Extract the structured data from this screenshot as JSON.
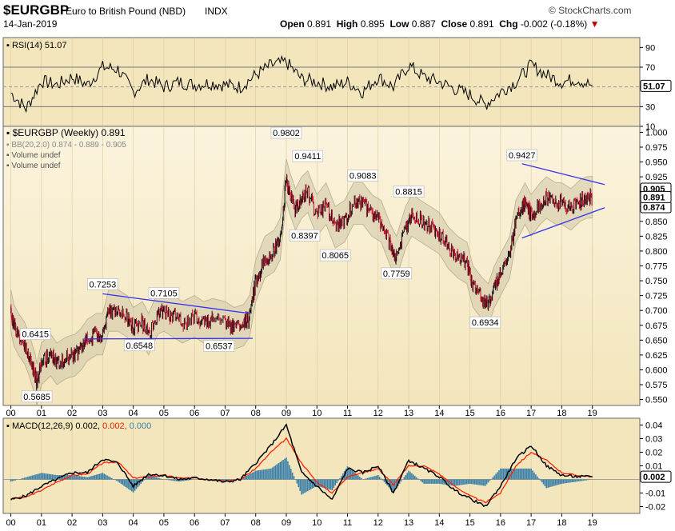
{
  "header": {
    "symbol": "$EURGBP",
    "name": "Euro to British Pound (NBD)",
    "exchange": "INDX",
    "date": "14-Jan-2019",
    "brand": "© StockCharts.com",
    "open_label": "Open",
    "open": "0.891",
    "high_label": "High",
    "high": "0.895",
    "low_label": "Low",
    "low": "0.887",
    "close_label": "Close",
    "close": "0.891",
    "chg_label": "Chg",
    "chg": "-0.002 (-0.18%)"
  },
  "colors": {
    "panel_bg": "#f3e6bd",
    "price_bar": "#111111",
    "price_down": "#c8102e",
    "bb_band": "#cfc6a8",
    "trendline": "#3333ee",
    "macd_line": "#000000",
    "signal_line": "#ff2200",
    "histogram": "#3a7fa8"
  },
  "chart_data": [
    {
      "type": "line",
      "panel": "RSI",
      "label": "RSI(14)",
      "last_value": "51.07",
      "ylim": [
        10,
        100
      ],
      "yticks": [
        "90",
        "70",
        "50",
        "30",
        "10"
      ],
      "reference_lines": [
        70,
        30
      ],
      "x_years": [
        2000.0,
        2000.5,
        2001.0,
        2001.5,
        2002.0,
        2002.5,
        2003.0,
        2003.5,
        2004.0,
        2004.5,
        2005.0,
        2005.5,
        2006.0,
        2006.5,
        2007.0,
        2007.5,
        2008.0,
        2008.5,
        2009.0,
        2009.5,
        2010.0,
        2010.5,
        2011.0,
        2011.5,
        2012.0,
        2012.5,
        2013.0,
        2013.5,
        2014.0,
        2014.5,
        2015.0,
        2015.5,
        2016.0,
        2016.5,
        2017.0,
        2017.5,
        2018.0,
        2018.5,
        2019.0
      ],
      "values": [
        44,
        28,
        56,
        52,
        60,
        52,
        70,
        68,
        45,
        58,
        50,
        55,
        52,
        54,
        52,
        50,
        62,
        72,
        75,
        58,
        55,
        50,
        55,
        45,
        60,
        50,
        72,
        60,
        55,
        48,
        42,
        32,
        45,
        55,
        72,
        62,
        55,
        58,
        51
      ]
    },
    {
      "type": "line",
      "panel": "Price",
      "title": "$EURGBP (Weekly) 0.891",
      "legend": [
        "BB(20,2.0) 0.874 - 0.889 - 0.905",
        "Volume undef",
        "Volume undef"
      ],
      "last_value": "0.891",
      "band_values": [
        "0.905",
        "0.874"
      ],
      "ylim": [
        0.55,
        1.0
      ],
      "yticks": [
        "1.000",
        "0.975",
        "0.950",
        "0.925",
        "0.900",
        "0.875",
        "0.850",
        "0.825",
        "0.800",
        "0.775",
        "0.750",
        "0.725",
        "0.700",
        "0.675",
        "0.650",
        "0.625",
        "0.600",
        "0.575",
        "0.550"
      ],
      "x_years": [
        2000.0,
        2000.1,
        2000.25,
        2000.45,
        2000.6,
        2000.8,
        2000.85,
        2001.0,
        2001.3,
        2001.5,
        2001.8,
        2002.1,
        2002.3,
        2002.5,
        2002.8,
        2003.0,
        2003.2,
        2003.5,
        2003.8,
        2004.0,
        2004.3,
        2004.5,
        2004.8,
        2005.0,
        2005.3,
        2005.6,
        2006.0,
        2006.3,
        2006.6,
        2007.0,
        2007.3,
        2007.6,
        2007.8,
        2008.0,
        2008.3,
        2008.6,
        2008.8,
        2009.0,
        2009.1,
        2009.3,
        2009.5,
        2009.7,
        2010.0,
        2010.3,
        2010.6,
        2010.9,
        2011.2,
        2011.5,
        2011.8,
        2012.1,
        2012.4,
        2012.6,
        2012.9,
        2013.1,
        2013.4,
        2013.7,
        2014.0,
        2014.3,
        2014.6,
        2014.9,
        2015.1,
        2015.4,
        2015.6,
        2015.8,
        2016.0,
        2016.3,
        2016.5,
        2016.7,
        2016.8,
        2017.0,
        2017.3,
        2017.5,
        2017.8,
        2018.0,
        2018.3,
        2018.6,
        2018.8,
        2019.0
      ],
      "values": [
        0.7,
        0.675,
        0.66,
        0.645,
        0.625,
        0.59,
        0.575,
        0.61,
        0.625,
        0.61,
        0.62,
        0.625,
        0.635,
        0.65,
        0.66,
        0.66,
        0.7,
        0.7,
        0.69,
        0.67,
        0.68,
        0.66,
        0.695,
        0.7,
        0.69,
        0.68,
        0.69,
        0.68,
        0.685,
        0.68,
        0.67,
        0.675,
        0.69,
        0.75,
        0.79,
        0.8,
        0.82,
        0.92,
        0.9,
        0.87,
        0.89,
        0.9,
        0.86,
        0.88,
        0.84,
        0.85,
        0.88,
        0.88,
        0.86,
        0.85,
        0.81,
        0.79,
        0.84,
        0.86,
        0.85,
        0.84,
        0.83,
        0.805,
        0.79,
        0.78,
        0.74,
        0.72,
        0.71,
        0.74,
        0.76,
        0.79,
        0.85,
        0.87,
        0.88,
        0.86,
        0.88,
        0.89,
        0.88,
        0.88,
        0.87,
        0.885,
        0.89,
        0.891
      ],
      "annotations": [
        {
          "x": 2000.8,
          "y": 0.6415,
          "text": "0.6415"
        },
        {
          "x": 2000.85,
          "y": 0.5685,
          "text": "0.5685"
        },
        {
          "x": 2003.0,
          "y": 0.7253,
          "text": "0.7253"
        },
        {
          "x": 2005.0,
          "y": 0.7105,
          "text": "0.7105"
        },
        {
          "x": 2004.2,
          "y": 0.6548,
          "text": "0.6548"
        },
        {
          "x": 2006.8,
          "y": 0.6537,
          "text": "0.6537"
        },
        {
          "x": 2009.0,
          "y": 0.9802,
          "text": "0.9802"
        },
        {
          "x": 2009.7,
          "y": 0.9411,
          "text": "0.9411"
        },
        {
          "x": 2009.6,
          "y": 0.8397,
          "text": "0.8397"
        },
        {
          "x": 2010.6,
          "y": 0.8065,
          "text": "0.8065"
        },
        {
          "x": 2011.5,
          "y": 0.9083,
          "text": "0.9083"
        },
        {
          "x": 2012.6,
          "y": 0.7759,
          "text": "0.7759"
        },
        {
          "x": 2013.0,
          "y": 0.8815,
          "text": "0.8815"
        },
        {
          "x": 2015.5,
          "y": 0.6934,
          "text": "0.6934"
        },
        {
          "x": 2016.7,
          "y": 0.9427,
          "text": "0.9427"
        }
      ],
      "trendlines": [
        {
          "x1": 2003.0,
          "y1": 0.728,
          "x2": 2007.8,
          "y2": 0.695
        },
        {
          "x1": 2002.4,
          "y1": 0.652,
          "x2": 2007.9,
          "y2": 0.653
        },
        {
          "x1": 2016.7,
          "y1": 0.947,
          "x2": 2019.4,
          "y2": 0.912
        },
        {
          "x1": 2016.7,
          "y1": 0.822,
          "x2": 2019.4,
          "y2": 0.873
        }
      ]
    },
    {
      "type": "line",
      "panel": "MACD",
      "label": "MACD(12,26,9)",
      "macd_value": "0.002",
      "signal_value": "0.002",
      "hist_value": "0.000",
      "last_value": "0.002",
      "ylim": [
        -0.025,
        0.045
      ],
      "yticks": [
        "0.04",
        "0.03",
        "0.02",
        "0.01",
        "-0.01",
        "-0.02"
      ],
      "x_years": [
        2000.0,
        2000.5,
        2001.0,
        2001.5,
        2002.0,
        2002.5,
        2003.0,
        2003.5,
        2004.0,
        2004.5,
        2005.0,
        2005.5,
        2006.0,
        2006.5,
        2007.0,
        2007.5,
        2008.0,
        2008.5,
        2009.0,
        2009.5,
        2010.0,
        2010.5,
        2011.0,
        2011.5,
        2012.0,
        2012.5,
        2013.0,
        2013.5,
        2014.0,
        2014.5,
        2015.0,
        2015.5,
        2016.0,
        2016.5,
        2017.0,
        2017.5,
        2018.0,
        2018.5,
        2019.0
      ],
      "macd": [
        -0.015,
        -0.012,
        -0.005,
        0.0,
        0.005,
        0.005,
        0.015,
        0.012,
        -0.005,
        0.004,
        0.003,
        0.0,
        0.001,
        0.0,
        -0.002,
        0.0,
        0.012,
        0.025,
        0.04,
        0.005,
        -0.005,
        -0.015,
        0.008,
        0.005,
        0.01,
        -0.01,
        0.014,
        0.008,
        0.002,
        -0.008,
        -0.014,
        -0.02,
        -0.005,
        0.015,
        0.025,
        0.01,
        0.003,
        0.002,
        0.002
      ],
      "signal": [
        -0.014,
        -0.013,
        -0.008,
        -0.002,
        0.003,
        0.004,
        0.012,
        0.013,
        0.001,
        0.002,
        0.003,
        0.001,
        0.001,
        0.0,
        -0.001,
        0.0,
        0.008,
        0.02,
        0.03,
        0.012,
        -0.002,
        -0.01,
        0.002,
        0.005,
        0.008,
        -0.004,
        0.01,
        0.01,
        0.004,
        -0.005,
        -0.012,
        -0.017,
        -0.01,
        0.01,
        0.02,
        0.014,
        0.005,
        0.003,
        0.002
      ]
    }
  ],
  "x_axis": {
    "labels": [
      "00",
      "01",
      "02",
      "03",
      "04",
      "05",
      "06",
      "07",
      "08",
      "09",
      "10",
      "11",
      "12",
      "13",
      "14",
      "15",
      "16",
      "17",
      "18",
      "19"
    ]
  }
}
